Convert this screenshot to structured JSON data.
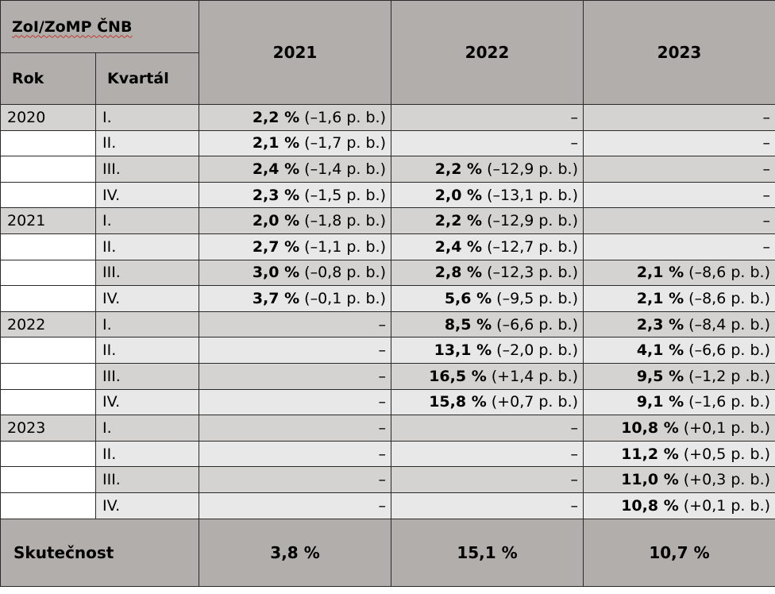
{
  "header": {
    "title": "ZoI/ZoMP ČNB",
    "col_rok": "Rok",
    "col_kvartal": "Kvartál",
    "years": [
      "2021",
      "2022",
      "2023"
    ]
  },
  "rows": [
    {
      "rok": "2020",
      "q": "I.",
      "c": [
        {
          "v": "2,2 %",
          "d": " (–1,6 p. b.)"
        },
        {
          "v": "",
          "d": "–"
        },
        {
          "v": "",
          "d": "–"
        }
      ]
    },
    {
      "rok": "",
      "q": "II.",
      "c": [
        {
          "v": "2,1 %",
          "d": " (–1,7 p. b.)"
        },
        {
          "v": "",
          "d": "–"
        },
        {
          "v": "",
          "d": "–"
        }
      ]
    },
    {
      "rok": "",
      "q": "III.",
      "c": [
        {
          "v": "2,4 %",
          "d": " (–1,4 p. b.)"
        },
        {
          "v": "2,2 %",
          "d": " (–12,9 p. b.)"
        },
        {
          "v": "",
          "d": "–"
        }
      ]
    },
    {
      "rok": "",
      "q": "IV.",
      "c": [
        {
          "v": "2,3 %",
          "d": " (–1,5 p. b.)"
        },
        {
          "v": "2,0 %",
          "d": " (–13,1 p. b.)"
        },
        {
          "v": "",
          "d": "–"
        }
      ]
    },
    {
      "rok": "2021",
      "q": "I.",
      "c": [
        {
          "v": "2,0 %",
          "d": " (–1,8 p. b.)"
        },
        {
          "v": "2,2 %",
          "d": " (–12,9 p. b.)"
        },
        {
          "v": "",
          "d": "–"
        }
      ]
    },
    {
      "rok": "",
      "q": "II.",
      "c": [
        {
          "v": "2,7 %",
          "d": " (–1,1 p. b.)"
        },
        {
          "v": "2,4 %",
          "d": " (–12,7 p. b.)"
        },
        {
          "v": "",
          "d": "–"
        }
      ]
    },
    {
      "rok": "",
      "q": "III.",
      "c": [
        {
          "v": "3,0 %",
          "d": " (–0,8 p. b.)"
        },
        {
          "v": "2,8 %",
          "d": " (–12,3 p. b.)"
        },
        {
          "v": "2,1 %",
          "d": " (–8,6 p. b.)"
        }
      ]
    },
    {
      "rok": "",
      "q": "IV.",
      "c": [
        {
          "v": "3,7 %",
          "d": " (–0,1 p. b.)"
        },
        {
          "v": "5,6 %",
          "d": " (–9,5 p. b.)"
        },
        {
          "v": "2,1 %",
          "d": " (–8,6 p. b.)"
        }
      ]
    },
    {
      "rok": "2022",
      "q": "I.",
      "c": [
        {
          "v": "",
          "d": "–"
        },
        {
          "v": "8,5 %",
          "d": " (–6,6 p. b.)"
        },
        {
          "v": "2,3 %",
          "d": " (–8,4 p. b.)"
        }
      ]
    },
    {
      "rok": "",
      "q": "II.",
      "c": [
        {
          "v": "",
          "d": "–"
        },
        {
          "v": "13,1 %",
          "d": " (–2,0 p. b.)"
        },
        {
          "v": "4,1 %",
          "d": " (–6,6 p. b.)"
        }
      ]
    },
    {
      "rok": "",
      "q": "III.",
      "c": [
        {
          "v": "",
          "d": "–"
        },
        {
          "v": "16,5 %",
          "d": " (+1,4 p. b.)"
        },
        {
          "v": "9,5 %",
          "d": " (–1,2 p .b.)"
        }
      ]
    },
    {
      "rok": "",
      "q": "IV.",
      "c": [
        {
          "v": "",
          "d": "–"
        },
        {
          "v": "15,8 %",
          "d": " (+0,7 p. b.)"
        },
        {
          "v": "9,1 %",
          "d": " (–1,6 p. b.)"
        }
      ]
    },
    {
      "rok": "2023",
      "q": "I.",
      "c": [
        {
          "v": "",
          "d": "–"
        },
        {
          "v": "",
          "d": "–"
        },
        {
          "v": "10,8 %",
          "d": " (+0,1 p. b.)"
        }
      ]
    },
    {
      "rok": "",
      "q": "II.",
      "c": [
        {
          "v": "",
          "d": "–"
        },
        {
          "v": "",
          "d": "–"
        },
        {
          "v": "11,2 %",
          "d": " (+0,5 p. b.)"
        }
      ]
    },
    {
      "rok": "",
      "q": "III.",
      "c": [
        {
          "v": "",
          "d": "–"
        },
        {
          "v": "",
          "d": "–"
        },
        {
          "v": "11,0 %",
          "d": " (+0,3 p. b.)"
        }
      ]
    },
    {
      "rok": "",
      "q": "IV.",
      "c": [
        {
          "v": "",
          "d": "–"
        },
        {
          "v": "",
          "d": "–"
        },
        {
          "v": "10,8 %",
          "d": " (+0,1 p. b.)"
        }
      ]
    }
  ],
  "footer": {
    "label": "Skutečnost",
    "values": [
      "3,8 %",
      "15,1 %",
      "10,7 %"
    ]
  },
  "colors": {
    "header_bg": "#b1aeab",
    "shaded_row": "#d5d3d2",
    "light_row": "#e8e8e8"
  }
}
